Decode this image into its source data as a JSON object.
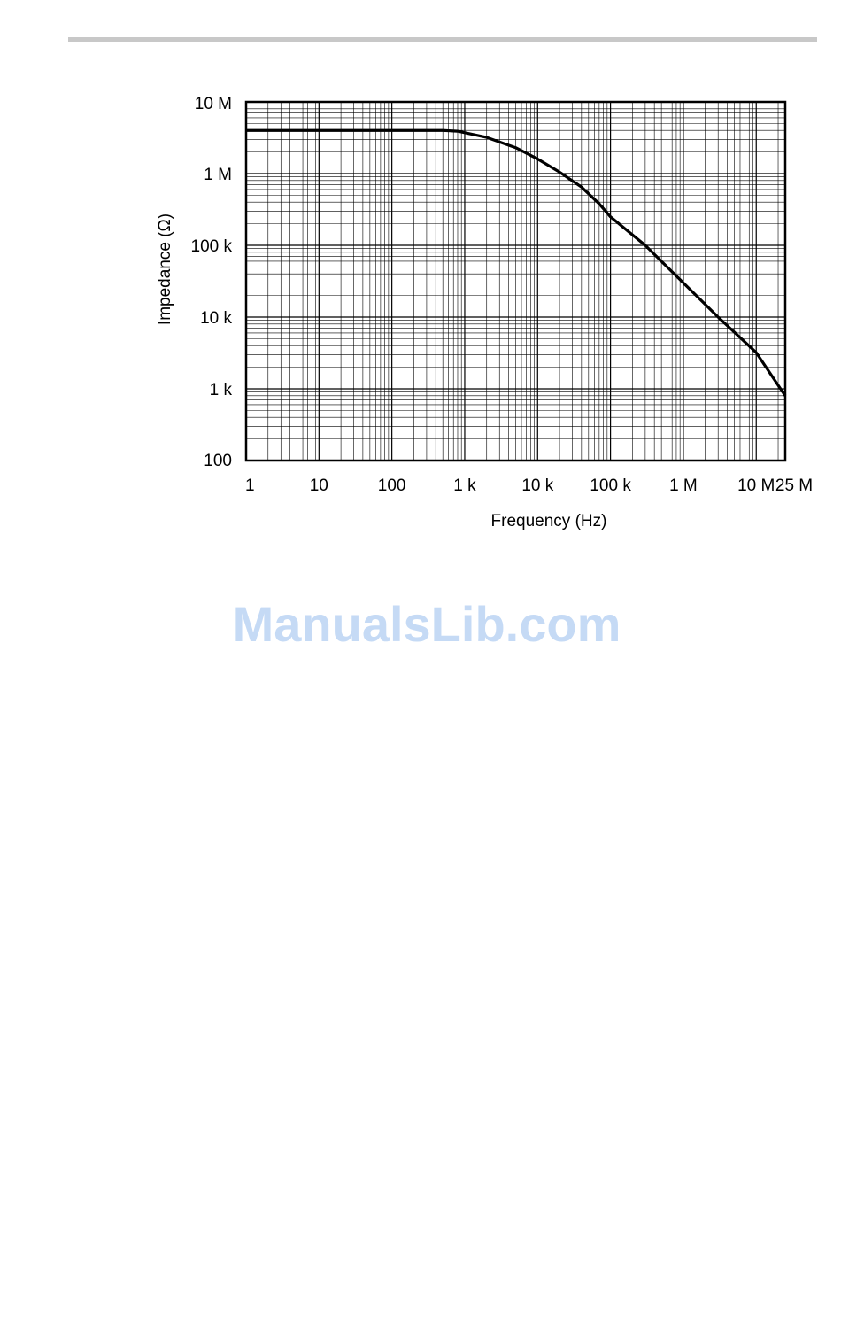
{
  "watermark": "ManualsLib.com",
  "colors": {
    "curve": "#000000",
    "grid": "#000000",
    "rule": "#c8c8c8",
    "watermark": "#c5daf5"
  },
  "chart_data": {
    "type": "line",
    "xscale": "log",
    "yscale": "log",
    "xlim": [
      1,
      25000000
    ],
    "ylim": [
      100,
      10000000
    ],
    "grid": true,
    "xlabel": "Frequency (Hz)",
    "ylabel": "Impedance (Ω)",
    "xticks": [
      {
        "value": 1,
        "label": "1"
      },
      {
        "value": 10,
        "label": "10"
      },
      {
        "value": 100,
        "label": "100"
      },
      {
        "value": 1000,
        "label": "1 k"
      },
      {
        "value": 10000,
        "label": "10 k"
      },
      {
        "value": 100000,
        "label": "100 k"
      },
      {
        "value": 1000000,
        "label": "1 M"
      },
      {
        "value": 10000000,
        "label": "10 M"
      },
      {
        "value": 25000000,
        "label": "25 M"
      }
    ],
    "yticks": [
      {
        "value": 100,
        "label": "100"
      },
      {
        "value": 1000,
        "label": "1 k"
      },
      {
        "value": 10000,
        "label": "10 k"
      },
      {
        "value": 100000,
        "label": "100 k"
      },
      {
        "value": 1000000,
        "label": "1 M"
      },
      {
        "value": 10000000,
        "label": "10 M"
      }
    ],
    "series": [
      {
        "x": [
          1,
          10,
          100,
          500,
          800,
          2000,
          5000,
          10000,
          20000,
          40000,
          70000,
          100000,
          300000,
          1000000,
          3000000,
          10000000,
          25000000
        ],
        "y": [
          4000000,
          4000000,
          4000000,
          4000000,
          3900000,
          3200000,
          2300000,
          1600000,
          1050000,
          650000,
          380000,
          250000,
          100000,
          30000,
          10000,
          3200,
          800
        ]
      }
    ]
  }
}
